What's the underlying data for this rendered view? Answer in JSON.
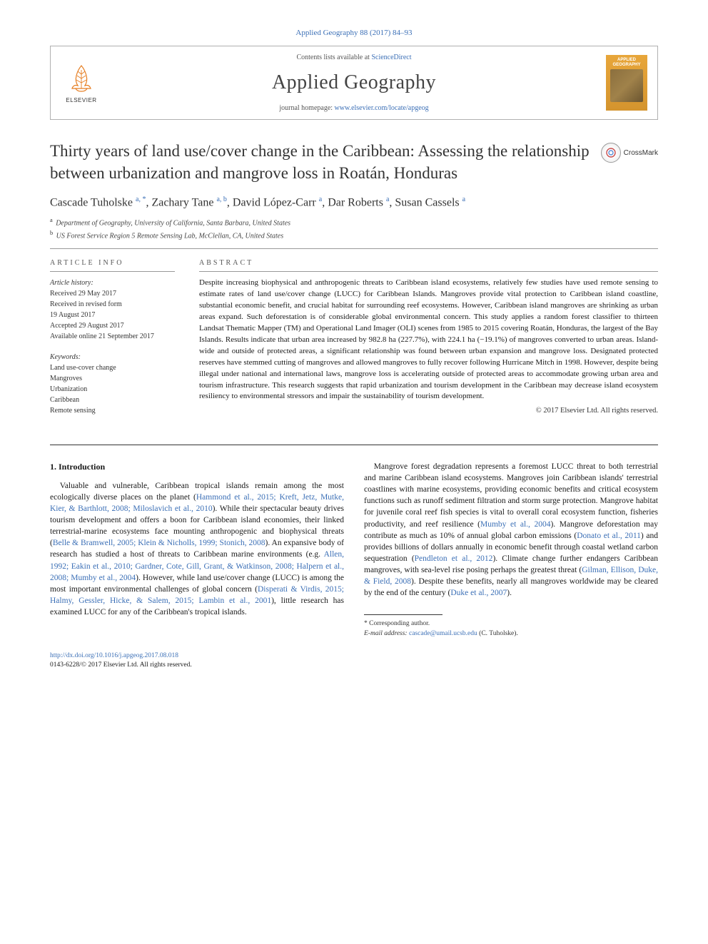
{
  "journal_ref": "Applied Geography 88 (2017) 84–93",
  "header": {
    "elsevier_label": "ELSEVIER",
    "contents_prefix": "Contents lists available at ",
    "contents_link": "ScienceDirect",
    "journal_name": "Applied Geography",
    "homepage_prefix": "journal homepage: ",
    "homepage_url": "www.elsevier.com/locate/apgeog",
    "cover_title": "APPLIED GEOGRAPHY"
  },
  "crossmark_label": "CrossMark",
  "article_title": "Thirty years of land use/cover change in the Caribbean: Assessing the relationship between urbanization and mangrove loss in Roatán, Honduras",
  "authors_html": "Cascade Tuholske <sup>a, *</sup>, Zachary Tane <sup>a, b</sup>, David López-Carr <sup>a</sup>, Dar Roberts <sup>a</sup>, Susan Cassels <sup>a</sup>",
  "affiliations": [
    {
      "sup": "a",
      "text": "Department of Geography, University of California, Santa Barbara, United States"
    },
    {
      "sup": "b",
      "text": "US Forest Service Region 5 Remote Sensing Lab, McClellan, CA, United States"
    }
  ],
  "info": {
    "heading": "ARTICLE INFO",
    "history_label": "Article history:",
    "history": [
      "Received 29 May 2017",
      "Received in revised form",
      "19 August 2017",
      "Accepted 29 August 2017",
      "Available online 21 September 2017"
    ],
    "keywords_label": "Keywords:",
    "keywords": [
      "Land use-cover change",
      "Mangroves",
      "Urbanization",
      "Caribbean",
      "Remote sensing"
    ]
  },
  "abstract": {
    "heading": "ABSTRACT",
    "text": "Despite increasing biophysical and anthropogenic threats to Caribbean island ecosystems, relatively few studies have used remote sensing to estimate rates of land use/cover change (LUCC) for Caribbean Islands. Mangroves provide vital protection to Caribbean island coastline, substantial economic benefit, and crucial habitat for surrounding reef ecosystems. However, Caribbean island mangroves are shrinking as urban areas expand. Such deforestation is of considerable global environmental concern. This study applies a random forest classifier to thirteen Landsat Thematic Mapper (TM) and Operational Land Imager (OLI) scenes from 1985 to 2015 covering Roatán, Honduras, the largest of the Bay Islands. Results indicate that urban area increased by 982.8 ha (227.7%), with 224.1 ha (−19.1%) of mangroves converted to urban areas. Island-wide and outside of protected areas, a significant relationship was found between urban expansion and mangrove loss. Designated protected reserves have stemmed cutting of mangroves and allowed mangroves to fully recover following Hurricane Mitch in 1998. However, despite being illegal under national and international laws, mangrove loss is accelerating outside of protected areas to accommodate growing urban area and tourism infrastructure. This research suggests that rapid urbanization and tourism development in the Caribbean may decrease island ecosystem resiliency to environmental stressors and impair the sustainability of tourism development.",
    "copyright": "© 2017 Elsevier Ltd. All rights reserved."
  },
  "body": {
    "section_heading": "1. Introduction",
    "p1_a": "Valuable and vulnerable, Caribbean tropical islands remain among the most ecologically diverse places on the planet (",
    "p1_c1": "Hammond et al., 2015; Kreft, Jetz, Mutke, Kier, & Barthlott, 2008; Miloslavich et al., 2010",
    "p1_b": "). While their spectacular beauty drives tourism development and offers a boon for Caribbean island economies, their linked terrestrial-marine ecosystems face mounting anthropogenic and biophysical threats (",
    "p1_c2": "Belle & Bramwell, 2005; Klein & Nicholls, 1999; Stonich, 2008",
    "p1_c": "). An expansive body of research has studied a host of threats to Caribbean marine environments (e.g. ",
    "p1_c3": "Allen, 1992; Eakin et al., 2010; Gardner, Cote, Gill, Grant, & Watkinson, 2008; Halpern et al., 2008; Mumby et al., 2004",
    "p1_d": "). However, while land use/cover change (LUCC) is among the most important environmental",
    "p1_e": "challenges of global concern (",
    "p1_c4": "Disperati & Virdis, 2015; Halmy, Gessler, Hicke, & Salem, 2015; Lambin et al., 2001",
    "p1_f": "), little research has examined LUCC for any of the Caribbean's tropical islands.",
    "p2_a": "Mangrove forest degradation represents a foremost LUCC threat to both terrestrial and marine Caribbean island ecosystems. Mangroves join Caribbean islands' terrestrial coastlines with marine ecosystems, providing economic benefits and critical ecosystem functions such as runoff sediment filtration and storm surge protection. Mangrove habitat for juvenile coral reef fish species is vital to overall coral ecosystem function, fisheries productivity, and reef resilience (",
    "p2_c1": "Mumby et al., 2004",
    "p2_b": "). Mangrove deforestation may contribute as much as 10% of annual global carbon emissions (",
    "p2_c2": "Donato et al., 2011",
    "p2_c": ") and provides billions of dollars annually in economic benefit through coastal wetland carbon sequestration (",
    "p2_c3": "Pendleton et al., 2012",
    "p2_d": "). Climate change further endangers Caribbean mangroves, with sea-level rise posing perhaps the greatest threat (",
    "p2_c4": "Gilman, Ellison, Duke, & Field, 2008",
    "p2_e": "). Despite these benefits, nearly all mangroves worldwide may be cleared by the end of the century (",
    "p2_c5": "Duke et al., 2007",
    "p2_f": ")."
  },
  "footnotes": {
    "corr": "* Corresponding author.",
    "email_label": "E-mail address:",
    "email": "cascade@umail.ucsb.edu",
    "email_suffix": "(C. Tuholske)."
  },
  "doi": {
    "url": "http://dx.doi.org/10.1016/j.apgeog.2017.08.018",
    "issn_line": "0143-6228/© 2017 Elsevier Ltd. All rights reserved."
  },
  "colors": {
    "link": "#3b6fb6",
    "text": "#1a1a1a",
    "rule": "#999999",
    "cover_bg": "#e8a63a"
  }
}
